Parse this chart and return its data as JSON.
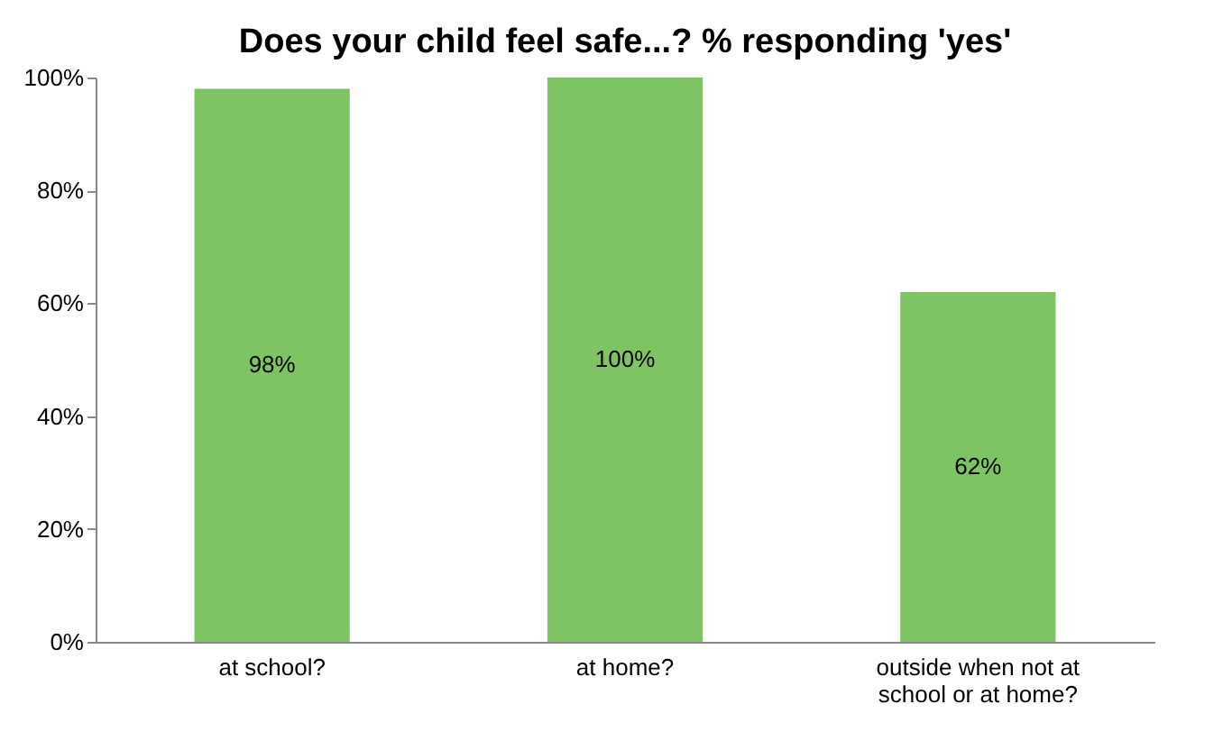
{
  "chart_data": {
    "type": "bar",
    "title": "Does your child feel safe...? % responding 'yes'",
    "categories": [
      "at school?",
      "at home?",
      "outside when not at school or at home?"
    ],
    "values": [
      98,
      100,
      62
    ],
    "color": "#7fc462",
    "value_labels": [
      "98%",
      "100%",
      "62%"
    ],
    "ylim": [
      0,
      100
    ],
    "yticks": [
      {
        "value": 0,
        "label": "0%"
      },
      {
        "value": 20,
        "label": "20%"
      },
      {
        "value": 40,
        "label": "40%"
      },
      {
        "value": 60,
        "label": "60%"
      },
      {
        "value": 80,
        "label": "80%"
      },
      {
        "value": 100,
        "label": "100%"
      }
    ],
    "grid": false
  }
}
